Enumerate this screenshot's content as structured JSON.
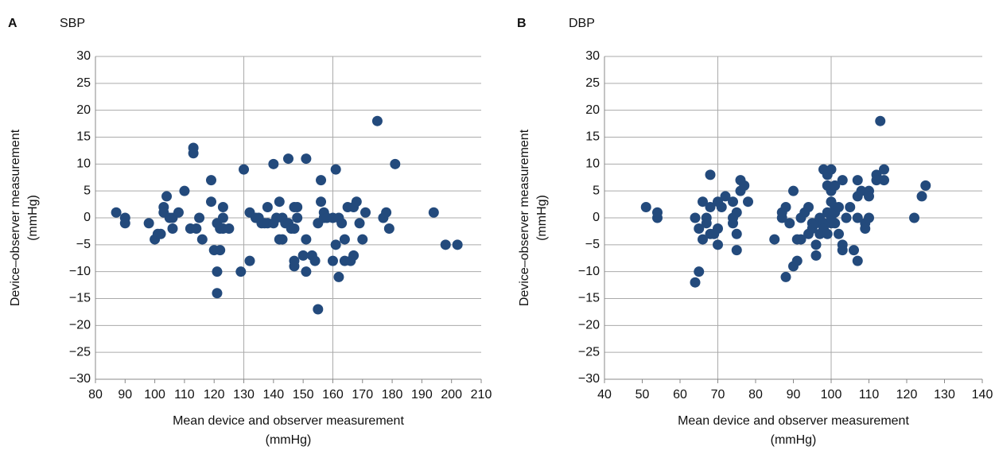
{
  "chart_data": [
    {
      "type": "scatter",
      "panel": "A",
      "title": "SBP",
      "xlabel": [
        "Mean device and observer measurement",
        "(mmHg)"
      ],
      "ylabel": [
        "Device–observer measurement",
        "(mmHg)"
      ],
      "color": "#234a7c",
      "xlim": [
        80,
        210
      ],
      "xticks": [
        80,
        90,
        100,
        110,
        120,
        130,
        140,
        150,
        160,
        170,
        180,
        190,
        200,
        210
      ],
      "xgrid": [
        130,
        160
      ],
      "ylim": [
        -30,
        30
      ],
      "yticks": [
        {
          "value": -30,
          "label": "−30"
        },
        {
          "value": -25,
          "label": "−25"
        },
        {
          "value": -20,
          "label": "−20"
        },
        {
          "value": -15,
          "label": "−15"
        },
        {
          "value": -10,
          "label": "−10"
        },
        {
          "value": -5,
          "label": "−5"
        },
        0,
        5,
        10,
        15,
        20,
        25,
        30
      ],
      "grid": true,
      "x": [
        87,
        90,
        90,
        98,
        100,
        101,
        102,
        103,
        103,
        104,
        105,
        106,
        106,
        108,
        110,
        112,
        113,
        113,
        114,
        115,
        116,
        119,
        119,
        120,
        121,
        121,
        121,
        122,
        122,
        123,
        123,
        123,
        125,
        129,
        130,
        132,
        132,
        134,
        135,
        136,
        137,
        138,
        138,
        140,
        140,
        141,
        142,
        142,
        143,
        143,
        144,
        145,
        145,
        146,
        147,
        147,
        148,
        147,
        147,
        148,
        150,
        151,
        151,
        151,
        153,
        154,
        155,
        155,
        156,
        156,
        157,
        157,
        158,
        160,
        160,
        161,
        161,
        162,
        162,
        163,
        164,
        164,
        165,
        166,
        167,
        167,
        168,
        169,
        170,
        171,
        175,
        177,
        178,
        179,
        181,
        194,
        198,
        202
      ],
      "values": [
        1,
        0,
        -1,
        -1,
        -4,
        -3,
        -3,
        2,
        1,
        4,
        0,
        -2,
        0,
        1,
        5,
        -2,
        12,
        13,
        -2,
        0,
        -4,
        3,
        7,
        -6,
        -1,
        -10,
        -14,
        -2,
        -6,
        2,
        0,
        -2,
        -2,
        -10,
        9,
        -8,
        1,
        0,
        0,
        -1,
        -1,
        2,
        -1,
        10,
        -1,
        0,
        3,
        -4,
        -4,
        0,
        -1,
        11,
        -1,
        -2,
        -2,
        2,
        2,
        -8,
        -9,
        0,
        -7,
        -10,
        -4,
        11,
        -7,
        -8,
        -17,
        -1,
        7,
        3,
        0,
        1,
        0,
        -8,
        0,
        9,
        -5,
        0,
        -11,
        -1,
        -8,
        -4,
        2,
        -8,
        -7,
        2,
        3,
        -1,
        -4,
        1,
        18,
        0,
        1,
        -2,
        10,
        1,
        -5,
        -5
      ]
    },
    {
      "type": "scatter",
      "panel": "B",
      "title": "DBP",
      "xlabel": [
        "Mean device and observer measurement",
        "(mmHg)"
      ],
      "ylabel": [
        "Device–observer measurement",
        "(mmHg)"
      ],
      "color": "#234a7c",
      "xlim": [
        40,
        140
      ],
      "xticks": [
        40,
        50,
        60,
        70,
        80,
        90,
        100,
        110,
        120,
        130,
        140
      ],
      "xgrid": [
        70,
        100
      ],
      "ylim": [
        -30,
        30
      ],
      "yticks": [
        {
          "value": -30,
          "label": "−30"
        },
        {
          "value": -25,
          "label": "−25"
        },
        {
          "value": -20,
          "label": "−20"
        },
        {
          "value": -15,
          "label": "−15"
        },
        {
          "value": -10,
          "label": "−10"
        },
        {
          "value": -5,
          "label": "−5"
        },
        0,
        5,
        10,
        15,
        20,
        25,
        30
      ],
      "grid": true,
      "x": [
        51,
        54,
        54,
        64,
        64,
        65,
        65,
        66,
        66,
        67,
        67,
        68,
        68,
        68,
        69,
        70,
        70,
        70,
        71,
        72,
        74,
        74,
        74,
        75,
        75,
        75,
        76,
        76,
        77,
        78,
        85,
        87,
        87,
        88,
        88,
        89,
        90,
        90,
        91,
        91,
        92,
        92,
        93,
        94,
        94,
        95,
        95,
        96,
        96,
        96,
        97,
        97,
        98,
        98,
        98,
        99,
        99,
        99,
        99,
        100,
        100,
        100,
        100,
        100,
        101,
        101,
        101,
        101,
        102,
        102,
        103,
        103,
        103,
        104,
        105,
        106,
        107,
        107,
        107,
        107,
        108,
        109,
        109,
        110,
        110,
        110,
        112,
        112,
        113,
        114,
        114,
        122,
        124,
        125
      ],
      "values": [
        2,
        0,
        1,
        0,
        -12,
        -10,
        -2,
        3,
        -4,
        0,
        -1,
        -3,
        8,
        2,
        -3,
        3,
        -2,
        -5,
        2,
        4,
        0,
        3,
        -1,
        -6,
        -3,
        1,
        5,
        7,
        6,
        3,
        -4,
        0,
        1,
        2,
        -11,
        -1,
        5,
        -9,
        -8,
        -4,
        0,
        -4,
        1,
        -3,
        2,
        -1,
        -2,
        -1,
        -5,
        -7,
        -3,
        0,
        -1,
        -2,
        9,
        1,
        8,
        6,
        -3,
        9,
        5,
        3,
        -1,
        0,
        6,
        2,
        1,
        -1,
        2,
        -3,
        7,
        -6,
        -5,
        0,
        2,
        -6,
        -8,
        4,
        0,
        7,
        5,
        -2,
        -1,
        5,
        4,
        0,
        8,
        7,
        18,
        7,
        9,
        0,
        4,
        6
      ]
    }
  ]
}
